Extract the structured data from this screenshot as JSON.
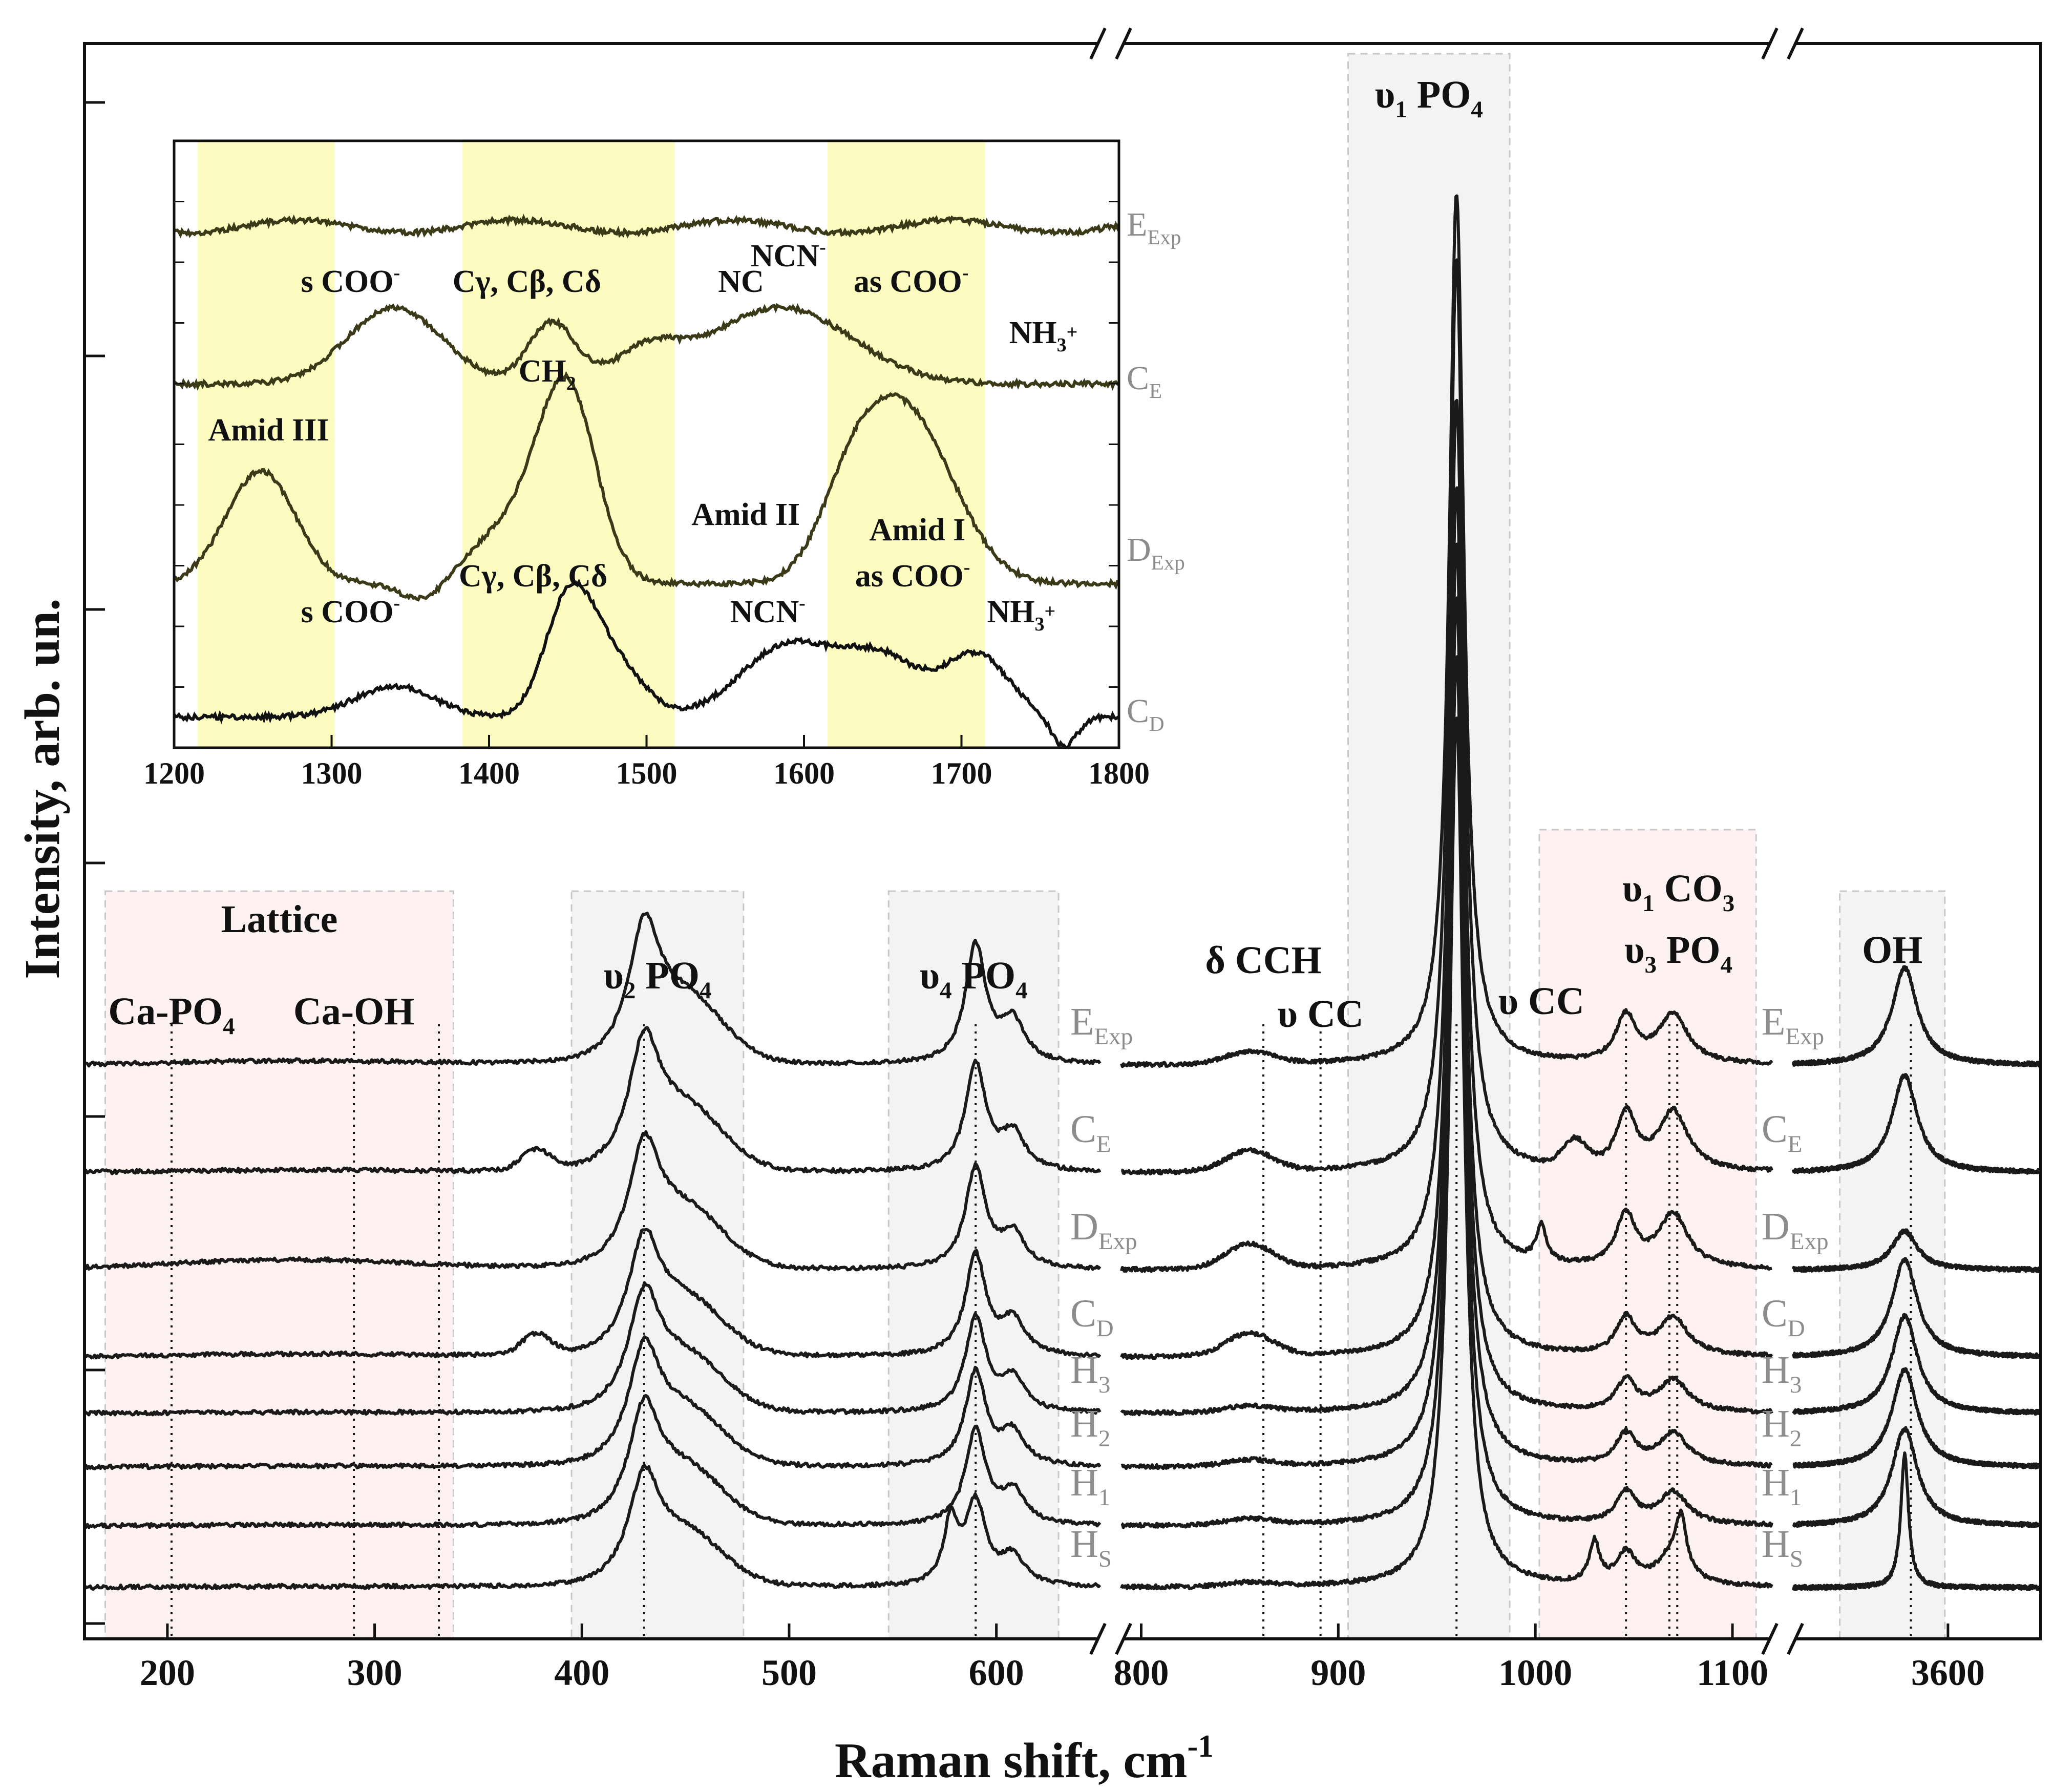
{
  "chart_data": [
    {
      "type": "line",
      "title": "",
      "xlabel": "Raman shift, cm",
      "xlabel_sup": "-1",
      "ylabel": "Intensity, arb. un.",
      "x_segments": [
        {
          "range": [
            160,
            650
          ],
          "ticks": [
            200,
            300,
            400,
            500,
            600
          ]
        },
        {
          "range": [
            790,
            1120
          ],
          "ticks": [
            800,
            900,
            1000,
            1100
          ]
        },
        {
          "range": [
            3500,
            3660
          ],
          "ticks": [
            3600
          ]
        }
      ],
      "series": [
        {
          "label": "E",
          "sub": "Exp"
        },
        {
          "label": "C",
          "sub": "E"
        },
        {
          "label": "D",
          "sub": "Exp"
        },
        {
          "label": "C",
          "sub": "D"
        },
        {
          "label": "H",
          "sub": "3"
        },
        {
          "label": "H",
          "sub": "2"
        },
        {
          "label": "H",
          "sub": "1"
        },
        {
          "label": "H",
          "sub": "S"
        }
      ],
      "bands": [
        {
          "lines": [
            {
              "parts": [
                {
                  "t": "Lattice"
                }
              ]
            }
          ],
          "range": [
            170,
            338
          ],
          "color": "#fdf1f1"
        },
        {
          "lines": [
            {
              "parts": [
                {
                  "t": "υ"
                },
                {
                  "t": "2",
                  "sub": true
                },
                {
                  "t": " PO"
                },
                {
                  "t": "4",
                  "sub": true
                }
              ]
            }
          ],
          "range": [
            395,
            478
          ],
          "color": "#f3f3f3"
        },
        {
          "lines": [
            {
              "parts": [
                {
                  "t": "υ"
                },
                {
                  "t": "4",
                  "sub": true
                },
                {
                  "t": " PO"
                },
                {
                  "t": "4",
                  "sub": true
                }
              ]
            }
          ],
          "range": [
            548,
            630
          ],
          "color": "#f3f3f3"
        },
        {
          "lines": [
            {
              "parts": [
                {
                  "t": "υ"
                },
                {
                  "t": "1",
                  "sub": true
                },
                {
                  "t": " PO"
                },
                {
                  "t": "4",
                  "sub": true
                }
              ]
            }
          ],
          "range": [
            905,
            987
          ],
          "color": "#f3f3f3"
        },
        {
          "lines": [
            {
              "parts": [
                {
                  "t": "υ"
                },
                {
                  "t": "1",
                  "sub": true
                },
                {
                  "t": " CO"
                },
                {
                  "t": "3",
                  "sub": true
                }
              ]
            },
            {
              "parts": [
                {
                  "t": "υ"
                },
                {
                  "t": "3",
                  "sub": true
                },
                {
                  "t": " PO"
                },
                {
                  "t": "4",
                  "sub": true
                }
              ]
            }
          ],
          "range": [
            1002,
            1112
          ],
          "color": "#fdf1f1"
        },
        {
          "lines": [
            {
              "parts": [
                {
                  "t": "OH"
                }
              ]
            }
          ],
          "range": [
            3530,
            3598
          ],
          "color": "#f3f3f3"
        }
      ],
      "annotations": [
        {
          "text": "Ca-PO",
          "sub": "4",
          "x": 202
        },
        {
          "text": "Ca-OH",
          "x": 290
        },
        {
          "text": "δ CCH",
          "x": 862
        },
        {
          "text": "υ CC",
          "x": 891
        },
        {
          "text": "υ CC",
          "x": 1003
        }
      ],
      "guides": [
        202,
        290,
        331,
        430,
        590,
        862,
        891,
        960,
        1046,
        1068,
        1072,
        3576
      ]
    },
    {
      "type": "line",
      "title": "",
      "xlim": [
        1200,
        1800
      ],
      "xticks": [
        1200,
        1300,
        1400,
        1500,
        1600,
        1700,
        1800
      ],
      "series": [
        {
          "label": "E",
          "sub": "Exp"
        },
        {
          "label": "C",
          "sub": "E"
        },
        {
          "label": "D",
          "sub": "Exp"
        },
        {
          "label": "C",
          "sub": "D"
        }
      ],
      "highlight_bands": [
        [
          1215,
          1302
        ],
        [
          1383,
          1518
        ],
        [
          1615,
          1715
        ]
      ],
      "annotations": [
        {
          "parts": [
            {
              "t": "s COO"
            },
            {
              "t": "-",
              "sup": true
            }
          ],
          "x": 1312,
          "row": 1
        },
        {
          "parts": [
            {
              "t": "Cγ, Cβ, Cδ"
            }
          ],
          "x": 1424,
          "row": 1
        },
        {
          "parts": [
            {
              "t": "NCN"
            },
            {
              "t": "-",
              "sup": true
            }
          ],
          "x": 1590,
          "row": 0
        },
        {
          "parts": [
            {
              "t": "NC"
            }
          ],
          "x": 1560,
          "row": 1
        },
        {
          "parts": [
            {
              "t": "as COO"
            },
            {
              "t": "-",
              "sup": true
            }
          ],
          "x": 1668,
          "row": 1
        },
        {
          "parts": [
            {
              "t": "NH"
            },
            {
              "t": "3",
              "sub": true
            },
            {
              "t": "+",
              "sup": true
            }
          ],
          "x": 1752,
          "row": 2
        },
        {
          "parts": [
            {
              "t": "CH"
            },
            {
              "t": "2",
              "sub": true
            }
          ],
          "x": 1437,
          "row": 3
        },
        {
          "parts": [
            {
              "t": "Amid III"
            }
          ],
          "x": 1260,
          "row": 4
        },
        {
          "parts": [
            {
              "t": "Amid II"
            }
          ],
          "x": 1563,
          "row": 5
        },
        {
          "parts": [
            {
              "t": "Amid I"
            }
          ],
          "x": 1672,
          "row": 6
        },
        {
          "parts": [
            {
              "t": "Cγ, Cβ, Cδ"
            }
          ],
          "x": 1428,
          "row": 7
        },
        {
          "parts": [
            {
              "t": "as COO"
            },
            {
              "t": "-",
              "sup": true
            }
          ],
          "x": 1669,
          "row": 7
        },
        {
          "parts": [
            {
              "t": "s COO"
            },
            {
              "t": "-",
              "sup": true
            }
          ],
          "x": 1312,
          "row": 8
        },
        {
          "parts": [
            {
              "t": "NCN"
            },
            {
              "t": "-",
              "sup": true
            }
          ],
          "x": 1577,
          "row": 8
        },
        {
          "parts": [
            {
              "t": "NH"
            },
            {
              "t": "3",
              "sub": true
            },
            {
              "t": "+",
              "sup": true
            }
          ],
          "x": 1738,
          "row": 8
        }
      ]
    }
  ]
}
